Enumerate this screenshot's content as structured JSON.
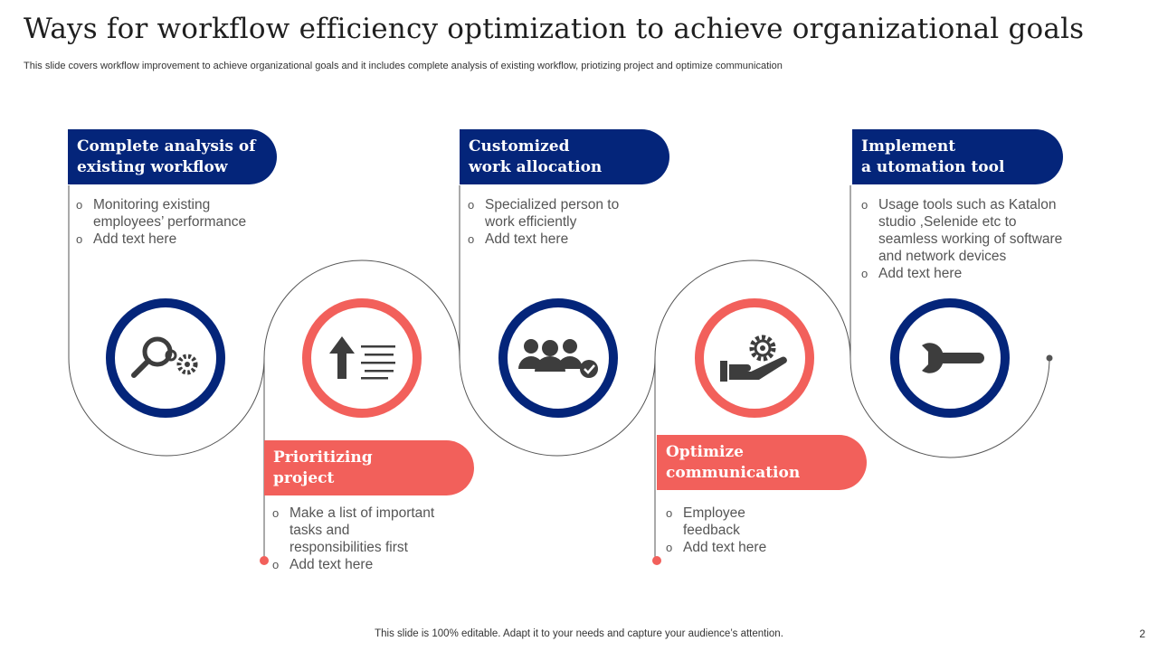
{
  "slide": {
    "title": "Ways for workflow efficiency optimization to achieve organizational goals",
    "subtitle": "This slide covers workflow improvement to achieve organizational goals and it includes complete analysis of existing workflow, priotizing project and optimize communication",
    "footer": "This slide is 100% editable. Adapt it to your needs and capture your audience’s attention.",
    "page_number": "2"
  },
  "colors": {
    "navy": "#04257a",
    "coral": "#f2605b",
    "line": "#555555"
  },
  "steps": [
    {
      "heading": [
        "Complete analysis of",
        "existing workflow"
      ],
      "bullets": [
        "Monitoring existing employees’ performance",
        "Add text here"
      ],
      "icon": "search-gear-icon",
      "color": "navy"
    },
    {
      "heading": [
        "Prioritizing",
        "project"
      ],
      "bullets": [
        "Make a list of important tasks and responsibilities first",
        "Add text here"
      ],
      "icon": "priority-list-icon",
      "color": "coral"
    },
    {
      "heading": [
        "Customized",
        "work allocation"
      ],
      "bullets": [
        "Specialized person to work efficiently",
        "Add text here"
      ],
      "icon": "team-check-icon",
      "color": "navy"
    },
    {
      "heading": [
        "Optimize",
        "communication"
      ],
      "bullets": [
        "Employee feedback",
        "Add text here"
      ],
      "icon": "hand-gear-icon",
      "color": "coral"
    },
    {
      "heading": [
        "Implement",
        "a utomation tool"
      ],
      "bullets": [
        "Usage tools such as Katalon studio ,Selenide etc to seamless working of software and network devices",
        "Add text here"
      ],
      "icon": "wrench-icon",
      "color": "navy"
    }
  ]
}
